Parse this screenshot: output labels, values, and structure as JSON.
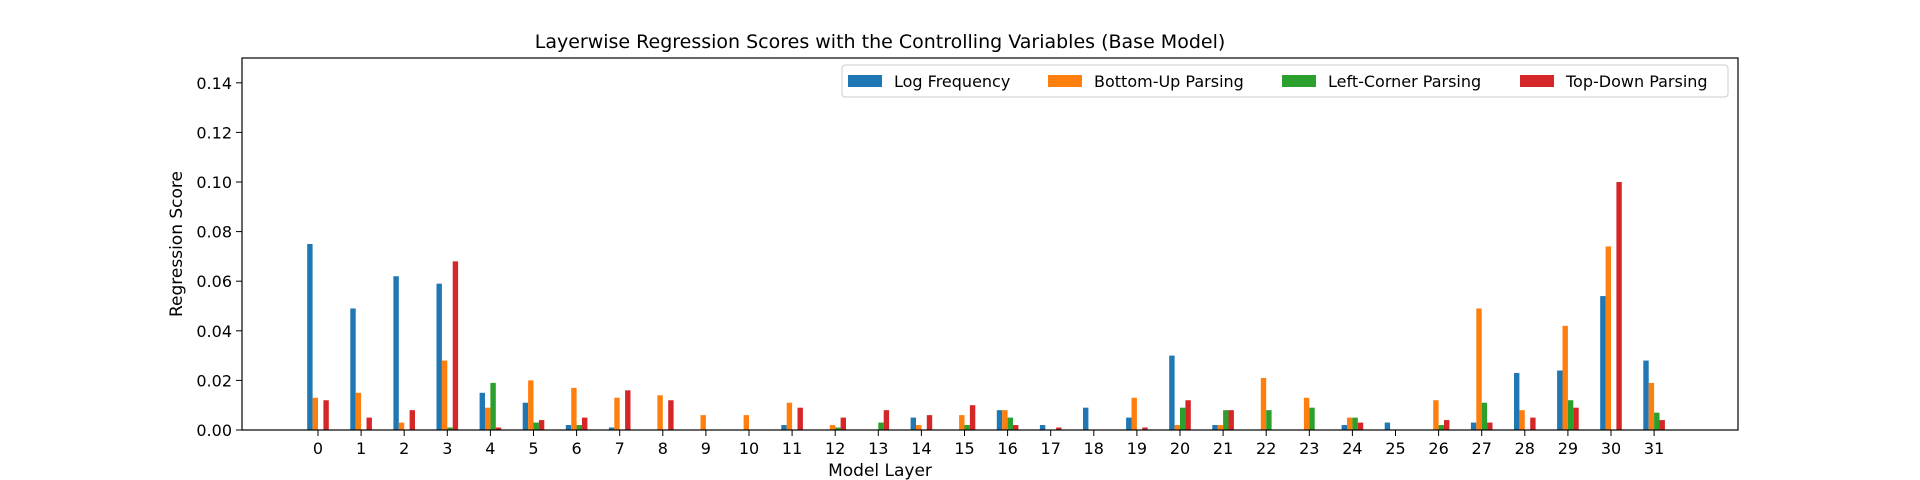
{
  "chart_data": {
    "type": "bar",
    "title": "Layerwise Regression Scores with the Controlling Variables (Base Model)",
    "xlabel": "Model Layer",
    "ylabel": "Regression Score",
    "ylim": [
      0,
      0.15
    ],
    "yticks": [
      "0.00",
      "0.02",
      "0.04",
      "0.06",
      "0.08",
      "0.10",
      "0.12",
      "0.14"
    ],
    "categories": [
      "0",
      "1",
      "2",
      "3",
      "4",
      "5",
      "6",
      "7",
      "8",
      "9",
      "10",
      "11",
      "12",
      "13",
      "14",
      "15",
      "16",
      "17",
      "18",
      "19",
      "20",
      "21",
      "22",
      "23",
      "24",
      "25",
      "26",
      "27",
      "28",
      "29",
      "30",
      "31"
    ],
    "legend_position": "top-right",
    "grid": false,
    "series": [
      {
        "name": "Log Frequency",
        "color": "#1f77b4",
        "values": [
          0.075,
          0.049,
          0.062,
          0.059,
          0.015,
          0.011,
          0.002,
          0.001,
          0.0,
          0.0,
          0.0,
          0.002,
          0.0,
          0.0,
          0.005,
          0.0,
          0.008,
          0.002,
          0.009,
          0.005,
          0.03,
          0.002,
          0.0,
          0.0,
          0.002,
          0.003,
          0.0,
          0.003,
          0.023,
          0.024,
          0.054,
          0.028
        ]
      },
      {
        "name": "Bottom-Up Parsing",
        "color": "#ff7f0e",
        "values": [
          0.013,
          0.015,
          0.003,
          0.028,
          0.009,
          0.02,
          0.017,
          0.013,
          0.014,
          0.006,
          0.006,
          0.011,
          0.002,
          0.0,
          0.002,
          0.006,
          0.008,
          0.0,
          0.0,
          0.013,
          0.002,
          0.002,
          0.021,
          0.013,
          0.005,
          0.0,
          0.012,
          0.049,
          0.008,
          0.042,
          0.074,
          0.019
        ]
      },
      {
        "name": "Left-Corner Parsing",
        "color": "#2ca02c",
        "values": [
          0.0,
          0.0,
          0.0,
          0.001,
          0.019,
          0.003,
          0.002,
          0.0,
          0.0,
          0.0,
          0.0,
          0.0,
          0.001,
          0.003,
          0.0,
          0.002,
          0.005,
          0.0,
          0.0,
          0.0,
          0.009,
          0.008,
          0.008,
          0.009,
          0.005,
          0.0,
          0.002,
          0.011,
          0.0,
          0.012,
          0.0,
          0.007
        ]
      },
      {
        "name": "Top-Down Parsing",
        "color": "#d62728",
        "values": [
          0.012,
          0.005,
          0.008,
          0.068,
          0.001,
          0.004,
          0.005,
          0.016,
          0.012,
          0.0,
          0.0,
          0.009,
          0.005,
          0.008,
          0.006,
          0.01,
          0.002,
          0.001,
          0.0,
          0.001,
          0.012,
          0.008,
          0.0,
          0.0,
          0.003,
          0.0,
          0.004,
          0.003,
          0.005,
          0.009,
          0.1,
          0.004
        ]
      }
    ]
  }
}
